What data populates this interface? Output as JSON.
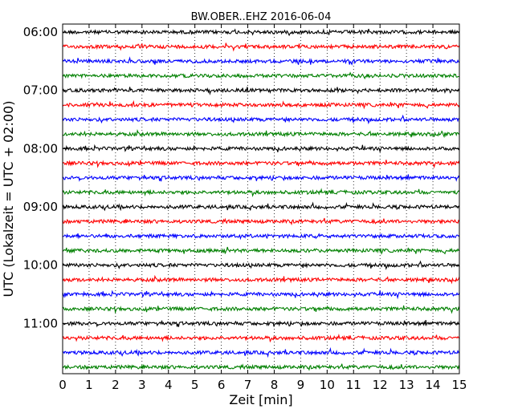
{
  "chart_data": {
    "type": "line",
    "title": "BW.OBER..EHZ 2016-06-04",
    "xlabel": "Zeit  [min]",
    "ylabel": "UTC (Lokalzeit = UTC + 02:00)",
    "xlim": [
      0,
      15
    ],
    "x_ticks": [
      "0",
      "1",
      "2",
      "3",
      "4",
      "5",
      "6",
      "7",
      "8",
      "9",
      "10",
      "11",
      "12",
      "13",
      "14",
      "15"
    ],
    "y_range_hours": [
      "06:00",
      "12:00"
    ],
    "y_inverted": true,
    "y_ticks": [
      "06:00",
      "07:00",
      "08:00",
      "09:00",
      "10:00",
      "11:00"
    ],
    "grid": "vertical dotted lines at each minute",
    "trace_minutes": 15,
    "trace_color_cycle": [
      "#000000",
      "#ff0000",
      "#0000ff",
      "#008000"
    ],
    "traces": [
      {
        "start": "06:00",
        "color": "#000000"
      },
      {
        "start": "06:15",
        "color": "#ff0000"
      },
      {
        "start": "06:30",
        "color": "#0000ff"
      },
      {
        "start": "06:45",
        "color": "#008000"
      },
      {
        "start": "07:00",
        "color": "#000000"
      },
      {
        "start": "07:15",
        "color": "#ff0000"
      },
      {
        "start": "07:30",
        "color": "#0000ff"
      },
      {
        "start": "07:45",
        "color": "#008000"
      },
      {
        "start": "08:00",
        "color": "#000000"
      },
      {
        "start": "08:15",
        "color": "#ff0000"
      },
      {
        "start": "08:30",
        "color": "#0000ff"
      },
      {
        "start": "08:45",
        "color": "#008000"
      },
      {
        "start": "09:00",
        "color": "#000000"
      },
      {
        "start": "09:15",
        "color": "#ff0000"
      },
      {
        "start": "09:30",
        "color": "#0000ff"
      },
      {
        "start": "09:45",
        "color": "#008000"
      },
      {
        "start": "10:00",
        "color": "#000000"
      },
      {
        "start": "10:15",
        "color": "#ff0000"
      },
      {
        "start": "10:30",
        "color": "#0000ff"
      },
      {
        "start": "10:45",
        "color": "#008000"
      },
      {
        "start": "11:00",
        "color": "#000000"
      },
      {
        "start": "11:15",
        "color": "#ff0000"
      },
      {
        "start": "11:30",
        "color": "#0000ff"
      },
      {
        "start": "11:45",
        "color": "#008000"
      }
    ]
  }
}
